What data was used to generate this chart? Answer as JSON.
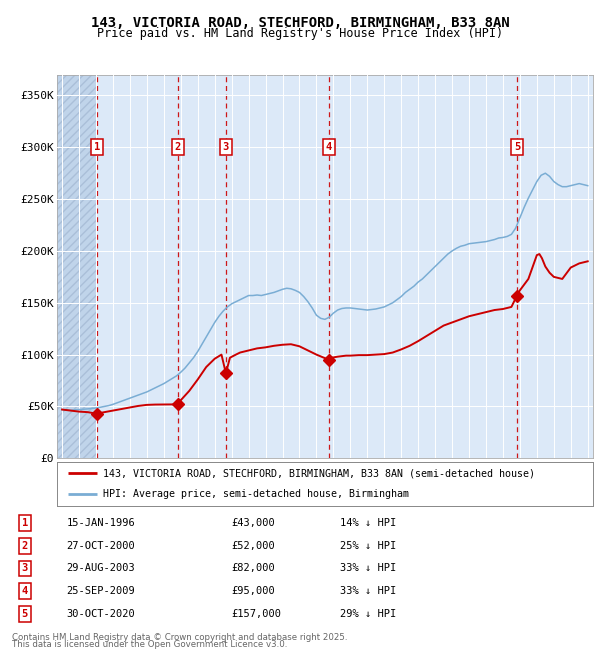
{
  "title_line1": "143, VICTORIA ROAD, STECHFORD, BIRMINGHAM, B33 8AN",
  "title_line2": "Price paid vs. HM Land Registry's House Price Index (HPI)",
  "legend_line1": "143, VICTORIA ROAD, STECHFORD, BIRMINGHAM, B33 8AN (semi-detached house)",
  "legend_line2": "HPI: Average price, semi-detached house, Birmingham",
  "footer_line1": "Contains HM Land Registry data © Crown copyright and database right 2025.",
  "footer_line2": "This data is licensed under the Open Government Licence v3.0.",
  "background_chart": "#dce9f8",
  "background_hatch": "#c0d4ea",
  "hpi_color": "#7aadd4",
  "price_color": "#cc0000",
  "vline_color": "#cc0000",
  "box_color": "#cc0000",
  "ylim": [
    0,
    370000
  ],
  "yticks": [
    0,
    50000,
    100000,
    150000,
    200000,
    250000,
    300000,
    350000
  ],
  "ytick_labels": [
    "£0",
    "£50K",
    "£100K",
    "£150K",
    "£200K",
    "£250K",
    "£300K",
    "£350K"
  ],
  "purchases": [
    {
      "num": 1,
      "date_x": 1996.04,
      "price": 43000,
      "label": "15-JAN-1996",
      "pct": "14%"
    },
    {
      "num": 2,
      "date_x": 2000.83,
      "price": 52000,
      "label": "27-OCT-2000",
      "pct": "25%"
    },
    {
      "num": 3,
      "date_x": 2003.66,
      "price": 82000,
      "label": "29-AUG-2003",
      "pct": "33%"
    },
    {
      "num": 4,
      "date_x": 2009.73,
      "price": 95000,
      "label": "25-SEP-2009",
      "pct": "33%"
    },
    {
      "num": 5,
      "date_x": 2020.83,
      "price": 157000,
      "label": "30-OCT-2020",
      "pct": "29%"
    }
  ],
  "hpi_data": [
    [
      1994.0,
      47000
    ],
    [
      1994.25,
      46500
    ],
    [
      1994.5,
      46200
    ],
    [
      1994.75,
      46800
    ],
    [
      1995.0,
      47000
    ],
    [
      1995.25,
      47300
    ],
    [
      1995.5,
      47600
    ],
    [
      1995.75,
      48000
    ],
    [
      1996.0,
      48500
    ],
    [
      1996.25,
      49200
    ],
    [
      1996.5,
      50000
    ],
    [
      1996.75,
      50800
    ],
    [
      1997.0,
      52000
    ],
    [
      1997.25,
      53500
    ],
    [
      1997.5,
      55000
    ],
    [
      1997.75,
      56500
    ],
    [
      1998.0,
      58000
    ],
    [
      1998.25,
      59500
    ],
    [
      1998.5,
      61000
    ],
    [
      1998.75,
      62500
    ],
    [
      1999.0,
      64000
    ],
    [
      1999.25,
      66000
    ],
    [
      1999.5,
      68000
    ],
    [
      1999.75,
      70000
    ],
    [
      2000.0,
      72000
    ],
    [
      2000.25,
      74500
    ],
    [
      2000.5,
      77000
    ],
    [
      2000.75,
      79500
    ],
    [
      2001.0,
      83000
    ],
    [
      2001.25,
      87000
    ],
    [
      2001.5,
      92000
    ],
    [
      2001.75,
      97000
    ],
    [
      2002.0,
      103000
    ],
    [
      2002.25,
      110000
    ],
    [
      2002.5,
      117000
    ],
    [
      2002.75,
      124000
    ],
    [
      2003.0,
      131000
    ],
    [
      2003.25,
      137000
    ],
    [
      2003.5,
      142000
    ],
    [
      2003.75,
      146000
    ],
    [
      2004.0,
      149000
    ],
    [
      2004.25,
      151000
    ],
    [
      2004.5,
      153000
    ],
    [
      2004.75,
      155000
    ],
    [
      2005.0,
      157000
    ],
    [
      2005.25,
      157000
    ],
    [
      2005.5,
      157500
    ],
    [
      2005.75,
      157000
    ],
    [
      2006.0,
      158000
    ],
    [
      2006.25,
      159000
    ],
    [
      2006.5,
      160000
    ],
    [
      2006.75,
      161500
    ],
    [
      2007.0,
      163000
    ],
    [
      2007.25,
      164000
    ],
    [
      2007.5,
      163500
    ],
    [
      2007.75,
      162000
    ],
    [
      2008.0,
      160000
    ],
    [
      2008.25,
      156000
    ],
    [
      2008.5,
      151000
    ],
    [
      2008.75,
      145000
    ],
    [
      2009.0,
      138000
    ],
    [
      2009.25,
      135000
    ],
    [
      2009.5,
      134000
    ],
    [
      2009.75,
      136000
    ],
    [
      2010.0,
      140000
    ],
    [
      2010.25,
      143000
    ],
    [
      2010.5,
      144500
    ],
    [
      2010.75,
      145000
    ],
    [
      2011.0,
      145000
    ],
    [
      2011.25,
      144500
    ],
    [
      2011.5,
      144000
    ],
    [
      2011.75,
      143500
    ],
    [
      2012.0,
      143000
    ],
    [
      2012.25,
      143500
    ],
    [
      2012.5,
      144000
    ],
    [
      2012.75,
      145000
    ],
    [
      2013.0,
      146000
    ],
    [
      2013.25,
      148000
    ],
    [
      2013.5,
      150000
    ],
    [
      2013.75,
      153000
    ],
    [
      2014.0,
      156000
    ],
    [
      2014.25,
      160000
    ],
    [
      2014.5,
      163000
    ],
    [
      2014.75,
      166000
    ],
    [
      2015.0,
      170000
    ],
    [
      2015.25,
      173000
    ],
    [
      2015.5,
      177000
    ],
    [
      2015.75,
      181000
    ],
    [
      2016.0,
      185000
    ],
    [
      2016.25,
      189000
    ],
    [
      2016.5,
      193000
    ],
    [
      2016.75,
      197000
    ],
    [
      2017.0,
      200000
    ],
    [
      2017.25,
      202500
    ],
    [
      2017.5,
      204500
    ],
    [
      2017.75,
      205500
    ],
    [
      2018.0,
      207000
    ],
    [
      2018.25,
      207500
    ],
    [
      2018.5,
      208000
    ],
    [
      2018.75,
      208500
    ],
    [
      2019.0,
      209000
    ],
    [
      2019.25,
      210000
    ],
    [
      2019.5,
      211000
    ],
    [
      2019.75,
      212500
    ],
    [
      2020.0,
      213000
    ],
    [
      2020.25,
      214000
    ],
    [
      2020.5,
      216000
    ],
    [
      2020.75,
      222000
    ],
    [
      2021.0,
      232000
    ],
    [
      2021.25,
      242000
    ],
    [
      2021.5,
      251000
    ],
    [
      2021.75,
      259000
    ],
    [
      2022.0,
      267000
    ],
    [
      2022.25,
      273000
    ],
    [
      2022.5,
      275000
    ],
    [
      2022.75,
      272000
    ],
    [
      2023.0,
      267000
    ],
    [
      2023.25,
      264000
    ],
    [
      2023.5,
      262000
    ],
    [
      2023.75,
      262000
    ],
    [
      2024.0,
      263000
    ],
    [
      2024.25,
      264000
    ],
    [
      2024.5,
      265000
    ],
    [
      2024.75,
      264000
    ],
    [
      2025.0,
      263000
    ]
  ],
  "price_data": [
    [
      1994.0,
      47000
    ],
    [
      1994.5,
      46000
    ],
    [
      1995.0,
      45000
    ],
    [
      1995.5,
      44500
    ],
    [
      1996.04,
      43000
    ],
    [
      1996.5,
      44500
    ],
    [
      1997.0,
      46000
    ],
    [
      1997.5,
      47500
    ],
    [
      1998.0,
      49000
    ],
    [
      1998.5,
      50500
    ],
    [
      1999.0,
      51500
    ],
    [
      1999.5,
      51800
    ],
    [
      2000.83,
      52000
    ],
    [
      2001.0,
      56000
    ],
    [
      2001.5,
      65000
    ],
    [
      2002.0,
      76000
    ],
    [
      2002.5,
      88000
    ],
    [
      2003.0,
      96000
    ],
    [
      2003.4,
      100000
    ],
    [
      2003.66,
      82000
    ],
    [
      2003.9,
      97000
    ],
    [
      2004.25,
      100000
    ],
    [
      2004.5,
      102000
    ],
    [
      2005.0,
      104000
    ],
    [
      2005.5,
      106000
    ],
    [
      2006.0,
      107000
    ],
    [
      2006.5,
      108500
    ],
    [
      2007.0,
      109500
    ],
    [
      2007.5,
      110000
    ],
    [
      2008.0,
      108000
    ],
    [
      2008.5,
      104000
    ],
    [
      2009.0,
      100000
    ],
    [
      2009.73,
      95000
    ],
    [
      2009.9,
      97000
    ],
    [
      2010.25,
      98000
    ],
    [
      2010.75,
      99000
    ],
    [
      2011.0,
      99000
    ],
    [
      2011.5,
      99500
    ],
    [
      2012.0,
      99500
    ],
    [
      2012.5,
      100000
    ],
    [
      2013.0,
      100500
    ],
    [
      2013.5,
      102000
    ],
    [
      2014.0,
      105000
    ],
    [
      2014.5,
      108500
    ],
    [
      2015.0,
      113000
    ],
    [
      2015.5,
      118000
    ],
    [
      2016.0,
      123000
    ],
    [
      2016.5,
      128000
    ],
    [
      2017.0,
      131000
    ],
    [
      2017.5,
      134000
    ],
    [
      2018.0,
      137000
    ],
    [
      2018.5,
      139000
    ],
    [
      2019.0,
      141000
    ],
    [
      2019.5,
      143000
    ],
    [
      2020.0,
      144000
    ],
    [
      2020.5,
      146000
    ],
    [
      2020.83,
      157000
    ],
    [
      2021.0,
      162000
    ],
    [
      2021.5,
      173000
    ],
    [
      2022.0,
      196000
    ],
    [
      2022.15,
      197000
    ],
    [
      2022.3,
      193000
    ],
    [
      2022.5,
      185000
    ],
    [
      2022.75,
      179000
    ],
    [
      2023.0,
      175000
    ],
    [
      2023.5,
      173000
    ],
    [
      2024.0,
      184000
    ],
    [
      2024.5,
      188000
    ],
    [
      2025.0,
      190000
    ]
  ],
  "xlim": [
    1993.7,
    2025.3
  ],
  "xticks": [
    1994,
    1995,
    1996,
    1997,
    1998,
    1999,
    2000,
    2001,
    2002,
    2003,
    2004,
    2005,
    2006,
    2007,
    2008,
    2009,
    2010,
    2011,
    2012,
    2013,
    2014,
    2015,
    2016,
    2017,
    2018,
    2019,
    2020,
    2021,
    2022,
    2023,
    2024,
    2025
  ]
}
